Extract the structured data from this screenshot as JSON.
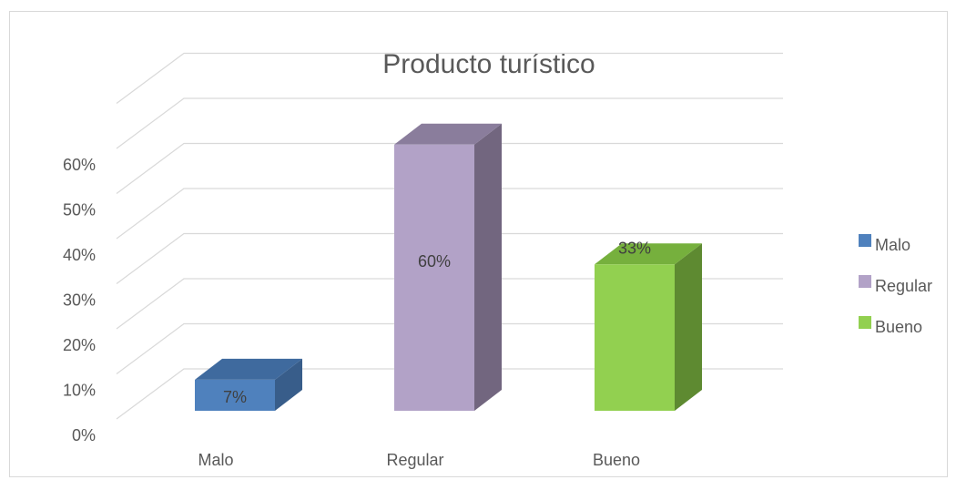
{
  "chart_data": {
    "type": "bar",
    "title": "Producto turístico",
    "categories": [
      "Malo",
      "Regular",
      "Bueno"
    ],
    "values": [
      7,
      60,
      33
    ],
    "value_labels": [
      "7%",
      "60%",
      "33%"
    ],
    "yticks": [
      "0%",
      "10%",
      "20%",
      "30%",
      "40%",
      "50%",
      "60%"
    ],
    "ylim": [
      0,
      70
    ],
    "grid": true,
    "three_d": true,
    "legend_position": "right",
    "legend": [
      "Malo",
      "Regular",
      "Bueno"
    ],
    "colors": {
      "Malo": {
        "front": "#4f81bd",
        "side": "#385d8a",
        "top": "#3f6a9e"
      },
      "Regular": {
        "front": "#b2a2c7",
        "side": "#72667f",
        "top": "#8a7d9c"
      },
      "Bueno": {
        "front": "#92d050",
        "side": "#5e8a31",
        "top": "#76b03d"
      }
    }
  }
}
